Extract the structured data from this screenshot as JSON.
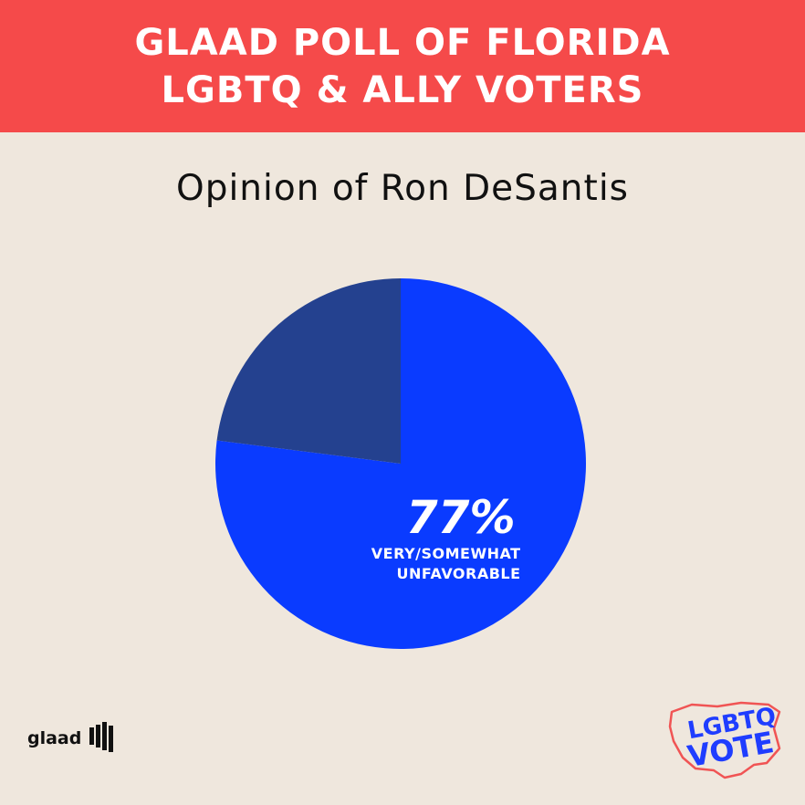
{
  "header": {
    "line1": "GLAAD POLL OF FLORIDA",
    "line2": "LGBTQ & ALLY VOTERS"
  },
  "chart_data": {
    "type": "pie",
    "title": "Opinion of Ron DeSantis",
    "slices": [
      {
        "label": "VERY/SOMEWHAT UNFAVORABLE",
        "value": 77,
        "display": "77%",
        "label_lines": [
          "VERY/SOMEWHAT",
          "UNFAVORABLE"
        ],
        "color": "#0a3bff"
      },
      {
        "label": "",
        "value": 23,
        "display": "",
        "label_lines": [],
        "color": "#24418f"
      }
    ]
  },
  "footer": {
    "glaad_text": "glaad",
    "vote_line1": "LGBTQ",
    "vote_line2": "VOTE"
  },
  "colors": {
    "background": "#efe7dd",
    "header": "#f54a4a",
    "primary_slice": "#0a3bff",
    "secondary_slice": "#24418f",
    "vote_text": "#1f3dff",
    "vote_outline": "#f05454"
  }
}
